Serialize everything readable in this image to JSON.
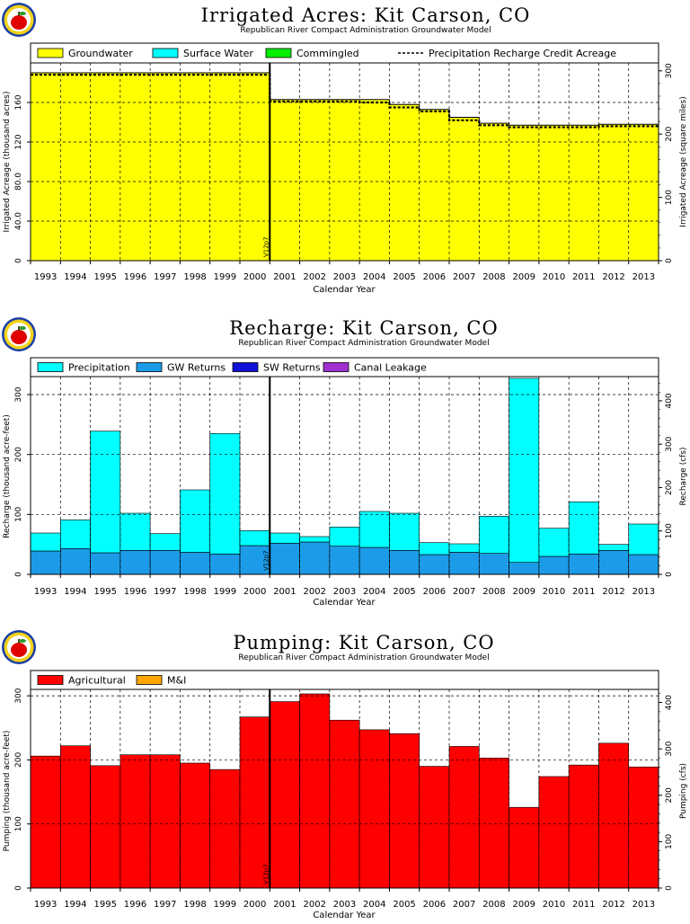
{
  "subtitle": "Republican River Compact Administration Groundwater Model",
  "xlabel": "Calendar Year",
  "marker_label": "V12p7",
  "years": [
    "1993",
    "1994",
    "1995",
    "1996",
    "1997",
    "1998",
    "1999",
    "2000",
    "2001",
    "2002",
    "2003",
    "2004",
    "2005",
    "2006",
    "2007",
    "2008",
    "2009",
    "2010",
    "2011",
    "2012",
    "2013"
  ],
  "chart_data": [
    {
      "type": "area",
      "title": "Irrigated Acres: Kit Carson, CO",
      "ylabel": "Irrigated Acreage (thousand acres)",
      "ylabel_right": "Irrigated Acreage (square miles)",
      "ylim": [
        0,
        200
      ],
      "ylim_right": [
        0,
        312.5
      ],
      "yticks": [
        "0",
        "40.0",
        "80.0",
        "120",
        "160"
      ],
      "yticks_right": [
        "0",
        "100",
        "200",
        "300"
      ],
      "legend": [
        {
          "name": "Groundwater",
          "color": "#ffff00",
          "kind": "box"
        },
        {
          "name": "Surface Water",
          "color": "#00ffff",
          "kind": "box"
        },
        {
          "name": "Commingled",
          "color": "#00ee00",
          "kind": "box"
        },
        {
          "name": "Precipitation Recharge Credit Acreage",
          "color": "#000000",
          "kind": "dash"
        }
      ],
      "series": [
        {
          "name": "Groundwater",
          "color": "#ffff00",
          "values": [
            190,
            190,
            190,
            190,
            190,
            190,
            190,
            190,
            163,
            163,
            163,
            163,
            158,
            153,
            145,
            139,
            137,
            137,
            137,
            138,
            138
          ]
        },
        {
          "name": "Precipitation Recharge Credit Acreage",
          "color": "#000000",
          "values": [
            188,
            188,
            188,
            188,
            188,
            188,
            188,
            188,
            161,
            161,
            161,
            160,
            155,
            151,
            142,
            137,
            135,
            135,
            135,
            136,
            136
          ]
        }
      ]
    },
    {
      "type": "bar",
      "title": "Recharge: Kit Carson, CO",
      "ylabel": "Recharge (thousand acre-feet)",
      "ylabel_right": "Recharge (cfs)",
      "ylim": [
        0,
        330
      ],
      "ylim_right": [
        0,
        455.8
      ],
      "yticks": [
        "0",
        "100",
        "200",
        "300"
      ],
      "yticks_right": [
        "0",
        "100",
        "200",
        "300",
        "400"
      ],
      "legend": [
        {
          "name": "Precipitation",
          "color": "#00ffff",
          "kind": "box"
        },
        {
          "name": "GW Returns",
          "color": "#1c9ce8",
          "kind": "box"
        },
        {
          "name": "SW Returns",
          "color": "#1010d8",
          "kind": "box"
        },
        {
          "name": "Canal Leakage",
          "color": "#a030d0",
          "kind": "box"
        }
      ],
      "series": [
        {
          "name": "GW Returns",
          "color": "#1c9ce8",
          "values": [
            39,
            43,
            36,
            40,
            40,
            37,
            34,
            48,
            52,
            54,
            47,
            45,
            40,
            33,
            37,
            35,
            20,
            30,
            34,
            40,
            33
          ]
        },
        {
          "name": "Precipitation",
          "color": "#00ffff",
          "values": [
            30,
            48,
            203,
            62,
            28,
            104,
            201,
            25,
            17,
            9,
            32,
            60,
            62,
            20,
            14,
            62,
            307,
            47,
            87,
            10,
            51
          ]
        }
      ]
    },
    {
      "type": "bar",
      "title": "Pumping: Kit Carson, CO",
      "ylabel": "Pumping (thousand acre-feet)",
      "ylabel_right": "Pumping (cfs)",
      "ylim": [
        0,
        310
      ],
      "ylim_right": [
        0,
        428.2
      ],
      "yticks": [
        "0",
        "100",
        "200",
        "300"
      ],
      "yticks_right": [
        "0",
        "100",
        "200",
        "300",
        "400"
      ],
      "legend": [
        {
          "name": "Agricultural",
          "color": "#ff0000",
          "kind": "box"
        },
        {
          "name": "M&I",
          "color": "#ffa500",
          "kind": "box"
        }
      ],
      "series": [
        {
          "name": "Agricultural",
          "color": "#ff0000",
          "values": [
            206,
            222,
            191,
            208,
            208,
            195,
            185,
            267,
            291,
            303,
            262,
            247,
            241,
            190,
            221,
            203,
            126,
            174,
            192,
            226,
            189
          ]
        }
      ]
    }
  ]
}
